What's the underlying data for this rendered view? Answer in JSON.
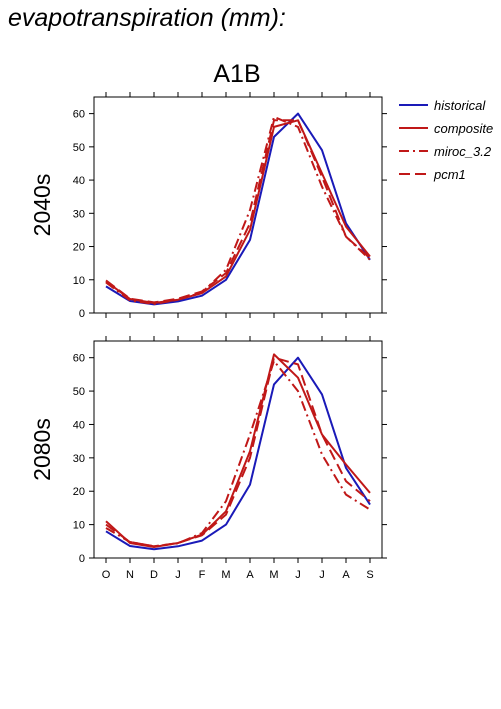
{
  "title": "evapotranspiration (mm):",
  "chart_data": {
    "type": "line",
    "subtitle": "A1B",
    "categories": [
      "O",
      "N",
      "D",
      "J",
      "F",
      "M",
      "A",
      "M",
      "J",
      "J",
      "A",
      "S"
    ],
    "ylim": [
      0,
      65
    ],
    "yticks": [
      0,
      10,
      20,
      30,
      40,
      50,
      60
    ],
    "legend_position": "right",
    "legend": [
      {
        "name": "historical",
        "color": "#1a1ab8",
        "style": "solid"
      },
      {
        "name": "composite",
        "color": "#c01818",
        "style": "solid"
      },
      {
        "name": "miroc_3.2",
        "color": "#c01818",
        "style": "dashdot"
      },
      {
        "name": "pcm1",
        "color": "#c01818",
        "style": "dashed"
      }
    ],
    "panels": [
      {
        "label": "2040s",
        "series": [
          {
            "name": "historical",
            "values": [
              8,
              3.6,
              2.6,
              3.5,
              5.2,
              10,
              22,
              53,
              60,
              49,
              27,
              16
            ]
          },
          {
            "name": "composite",
            "values": [
              9.5,
              4.2,
              3,
              4,
              6,
              11,
              25,
              56,
              58,
              42,
              26,
              17
            ]
          },
          {
            "name": "miroc_3.2",
            "values": [
              9.2,
              3.8,
              2.7,
              4,
              6.2,
              13,
              31,
              59,
              56,
              38,
              23,
              16
            ]
          },
          {
            "name": "pcm1",
            "values": [
              9.8,
              4.3,
              3.2,
              4.3,
              6.5,
              12,
              27,
              58,
              58,
              41,
              23,
              16.5
            ]
          }
        ]
      },
      {
        "label": "2080s",
        "series": [
          {
            "name": "historical",
            "values": [
              8,
              3.6,
              2.6,
              3.5,
              5.2,
              10,
              22,
              52,
              60,
              49,
              27,
              16
            ]
          },
          {
            "name": "composite",
            "values": [
              11,
              4.5,
              3.3,
              4.5,
              7,
              14,
              32,
              61,
              54,
              37,
              28,
              19.5
            ]
          },
          {
            "name": "miroc_3.2",
            "values": [
              9,
              4.8,
              3.5,
              4.4,
              7.5,
              17,
              37,
              59,
              50,
              31,
              19,
              14.5
            ]
          },
          {
            "name": "pcm1",
            "values": [
              10,
              4.8,
              3.5,
              4.5,
              6.8,
              13,
              30,
              60,
              58,
              37,
              23,
              17
            ]
          }
        ]
      }
    ]
  }
}
